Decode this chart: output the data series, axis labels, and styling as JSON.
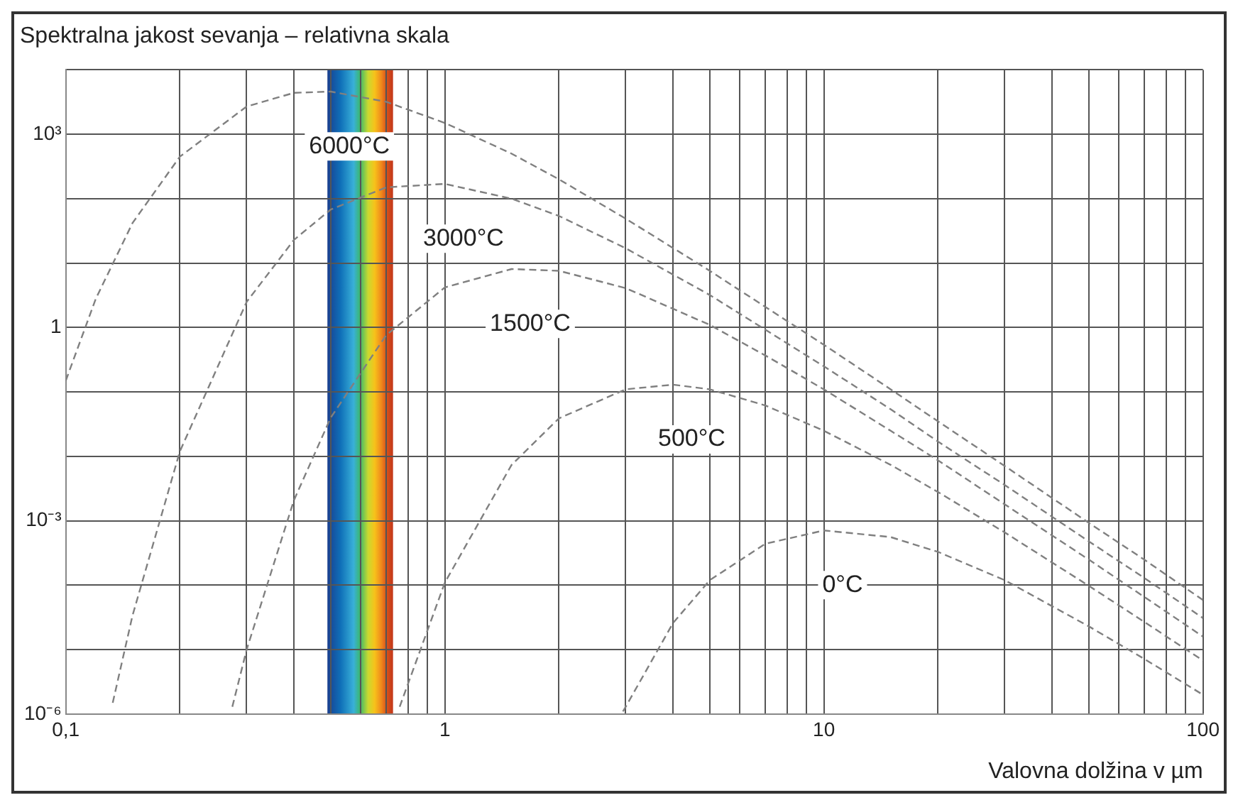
{
  "chart_data": {
    "type": "line",
    "title": "Spektralna jakost sevanja – relativna skala",
    "xlabel": "Valovna dolžina v µm",
    "log": "xy",
    "grid": true,
    "legend": false,
    "marker": "none",
    "line_style": "dashed",
    "xlim": [
      0.1,
      100
    ],
    "ylim": [
      1e-06,
      10000.0
    ],
    "xticks": [
      {
        "value": 0.1,
        "label": "0,1"
      },
      {
        "value": 0.2,
        "label": null
      },
      {
        "value": 0.3,
        "label": null
      },
      {
        "value": 0.4,
        "label": null
      },
      {
        "value": 0.5,
        "label": null
      },
      {
        "value": 0.6,
        "label": null
      },
      {
        "value": 0.7,
        "label": null
      },
      {
        "value": 0.8,
        "label": null
      },
      {
        "value": 0.9,
        "label": null
      },
      1,
      {
        "value": 2,
        "label": null
      },
      {
        "value": 3,
        "label": null
      },
      {
        "value": 4,
        "label": null
      },
      {
        "value": 5,
        "label": null
      },
      {
        "value": 6,
        "label": null
      },
      {
        "value": 7,
        "label": null
      },
      {
        "value": 8,
        "label": null
      },
      {
        "value": 9,
        "label": null
      },
      10,
      {
        "value": 20,
        "label": null
      },
      {
        "value": 30,
        "label": null
      },
      {
        "value": 40,
        "label": null
      },
      {
        "value": 50,
        "label": null
      },
      {
        "value": 60,
        "label": null
      },
      {
        "value": 70,
        "label": null
      },
      {
        "value": 80,
        "label": null
      },
      {
        "value": 90,
        "label": null
      },
      100
    ],
    "yticks": [
      {
        "value": 1e-06,
        "label": "10⁻⁶"
      },
      {
        "value": 1e-05,
        "label": null
      },
      {
        "value": 0.0001,
        "label": null
      },
      {
        "value": 0.001,
        "label": "10⁻³"
      },
      {
        "value": 0.01,
        "label": null
      },
      {
        "value": 0.1,
        "label": null
      },
      1,
      {
        "value": 10,
        "label": null
      },
      {
        "value": 100,
        "label": null
      },
      {
        "value": 1000,
        "label": "10³"
      },
      {
        "value": 10000,
        "label": null
      }
    ],
    "bands": [
      {
        "axis": "x",
        "from": 0.49,
        "to": 0.73
      }
    ],
    "series": [
      {
        "name": "6000°C",
        "color": "#808080",
        "x": [
          0.1,
          0.12,
          0.15,
          0.2,
          0.3,
          0.4,
          0.5,
          0.7,
          1,
          1.5,
          2,
          3,
          5,
          7,
          10,
          15,
          20,
          30,
          50,
          70,
          100
        ],
        "values": [
          0.15,
          2.8,
          42,
          450,
          2700,
          4400,
          4600,
          3200,
          1500,
          500,
          200,
          49,
          7.6,
          2.1,
          0.54,
          0.11,
          0.035,
          0.0071,
          0.00093,
          0.00025,
          5.9e-05
        ]
      },
      {
        "name": "3000°C",
        "color": "#808080",
        "x": [
          0.133,
          0.15,
          0.2,
          0.3,
          0.4,
          0.5,
          0.7,
          1,
          1.5,
          2,
          3,
          5,
          7,
          10,
          15,
          20,
          30,
          50,
          70,
          100
        ],
        "values": [
          1.5e-06,
          3.4e-05,
          0.012,
          2.5,
          23,
          68,
          150,
          170,
          100,
          54,
          17,
          3.2,
          0.93,
          0.25,
          0.054,
          0.017,
          0.0036,
          0.00048,
          0.00013,
          3.1e-05
        ]
      },
      {
        "name": "1500°C",
        "color": "#808080",
        "x": [
          0.275,
          0.3,
          0.4,
          0.5,
          0.7,
          1,
          1.5,
          2,
          3,
          5,
          7,
          10,
          15,
          20,
          30,
          50,
          70,
          100
        ],
        "values": [
          1.3e-06,
          1e-05,
          0.0021,
          0.04,
          0.76,
          4.2,
          8.1,
          7.6,
          4.1,
          1.1,
          0.37,
          0.11,
          0.025,
          0.0087,
          0.0018,
          0.00025,
          6.6e-05,
          1.6e-05
        ]
      },
      {
        "name": "500°C",
        "color": "#808080",
        "x": [
          0.76,
          1,
          1.5,
          2,
          3,
          4,
          5,
          7,
          10,
          15,
          20,
          30,
          50,
          70,
          100
        ],
        "values": [
          1.3e-06,
          0.00011,
          0.0074,
          0.039,
          0.11,
          0.13,
          0.11,
          0.062,
          0.025,
          0.0074,
          0.0028,
          0.00066,
          9.8e-05,
          2.7e-05,
          6.8e-06
        ]
      },
      {
        "name": "0°C",
        "color": "#808080",
        "x": [
          2.95,
          3,
          4,
          5,
          7,
          10,
          15,
          20,
          30,
          50,
          70,
          100
        ],
        "values": [
          1.1e-06,
          1.3e-06,
          2.6e-05,
          0.00012,
          0.00044,
          0.00071,
          0.00056,
          0.00033,
          0.00012,
          2.3e-05,
          7.2e-06,
          2e-06
        ]
      }
    ]
  }
}
